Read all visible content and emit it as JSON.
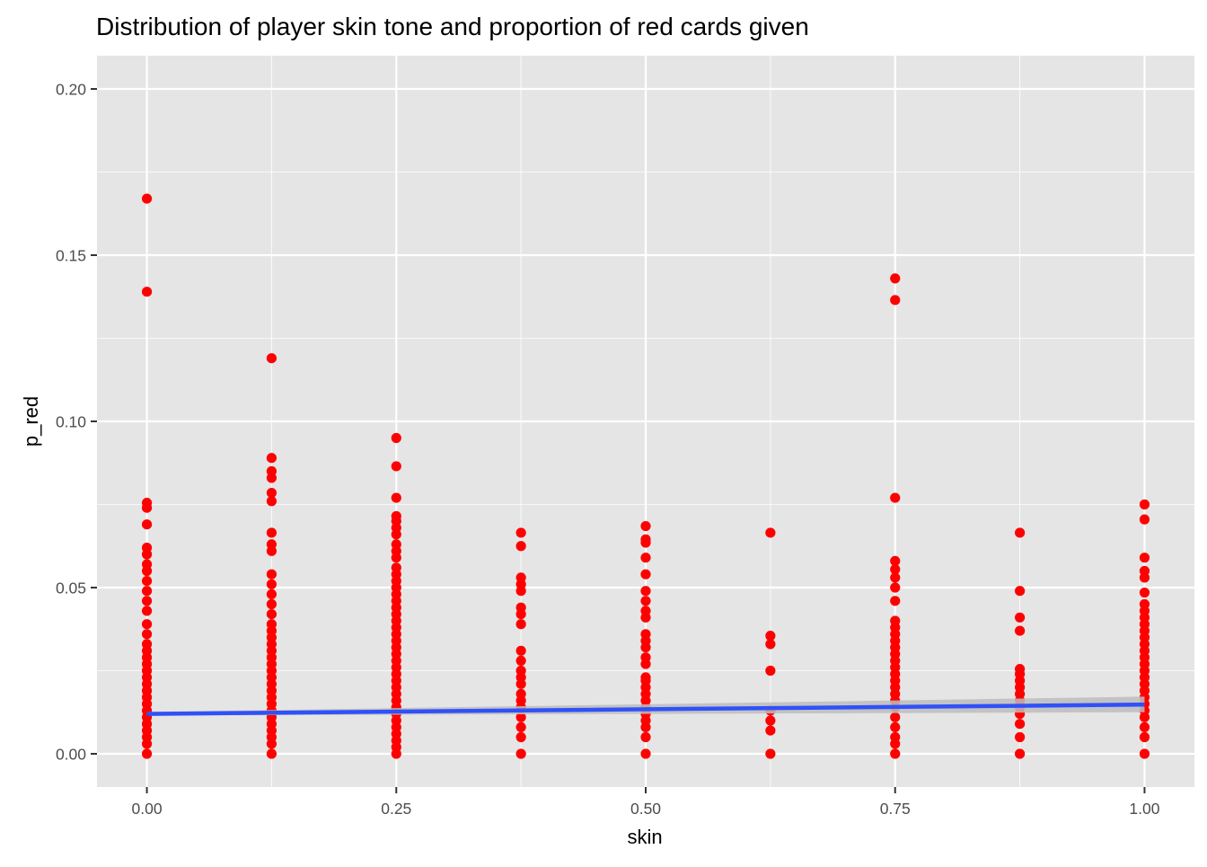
{
  "chart_data": {
    "type": "scatter",
    "title": "Distribution of player skin tone and proportion of red cards given",
    "xlabel": "skin",
    "ylabel": "p_red",
    "xlim": [
      -0.05,
      1.05
    ],
    "ylim": [
      -0.01,
      0.21
    ],
    "x_ticks": [
      0.0,
      0.25,
      0.5,
      0.75,
      1.0
    ],
    "x_tick_labels": [
      "0.00",
      "0.25",
      "0.50",
      "0.75",
      "1.00"
    ],
    "y_ticks": [
      0.0,
      0.05,
      0.1,
      0.15,
      0.2
    ],
    "y_tick_labels": [
      "0.00",
      "0.05",
      "0.10",
      "0.15",
      "0.20"
    ],
    "grid": true,
    "legend": "none",
    "colors": {
      "panel_background": "#e5e5e5",
      "gridline": "#ffffff",
      "points": "#ff0000",
      "trend_line": "#3050f8",
      "confidence_band": "#bdbdbd"
    },
    "series": [
      {
        "type": "points",
        "x_groups": [
          {
            "x": 0.0,
            "y": [
              0.0,
              0.003,
              0.005,
              0.007,
              0.009,
              0.011,
              0.013,
              0.015,
              0.017,
              0.019,
              0.021,
              0.023,
              0.025,
              0.027,
              0.029,
              0.031,
              0.033,
              0.036,
              0.039,
              0.043,
              0.046,
              0.049,
              0.052,
              0.055,
              0.057,
              0.06,
              0.062,
              0.069,
              0.074,
              0.0755,
              0.139,
              0.167
            ]
          },
          {
            "x": 0.125,
            "y": [
              0.0,
              0.003,
              0.005,
              0.007,
              0.009,
              0.011,
              0.013,
              0.015,
              0.017,
              0.019,
              0.021,
              0.023,
              0.025,
              0.027,
              0.029,
              0.031,
              0.033,
              0.035,
              0.037,
              0.039,
              0.042,
              0.045,
              0.048,
              0.051,
              0.054,
              0.061,
              0.063,
              0.0665,
              0.076,
              0.0785,
              0.083,
              0.085,
              0.089,
              0.119
            ]
          },
          {
            "x": 0.25,
            "y": [
              0.0,
              0.002,
              0.004,
              0.006,
              0.008,
              0.01,
              0.012,
              0.014,
              0.016,
              0.018,
              0.02,
              0.022,
              0.024,
              0.026,
              0.028,
              0.03,
              0.032,
              0.034,
              0.036,
              0.038,
              0.04,
              0.042,
              0.044,
              0.046,
              0.048,
              0.05,
              0.052,
              0.054,
              0.056,
              0.059,
              0.061,
              0.063,
              0.066,
              0.068,
              0.07,
              0.0715,
              0.077,
              0.0865,
              0.095
            ]
          },
          {
            "x": 0.375,
            "y": [
              0.0,
              0.005,
              0.008,
              0.011,
              0.014,
              0.016,
              0.018,
              0.021,
              0.023,
              0.025,
              0.028,
              0.031,
              0.039,
              0.042,
              0.044,
              0.049,
              0.051,
              0.053,
              0.0625,
              0.0665
            ]
          },
          {
            "x": 0.5,
            "y": [
              0.0,
              0.005,
              0.008,
              0.01,
              0.012,
              0.014,
              0.016,
              0.018,
              0.02,
              0.022,
              0.023,
              0.027,
              0.029,
              0.032,
              0.034,
              0.036,
              0.041,
              0.043,
              0.046,
              0.049,
              0.054,
              0.059,
              0.0635,
              0.0645,
              0.0685
            ]
          },
          {
            "x": 0.625,
            "y": [
              0.0,
              0.007,
              0.01,
              0.013,
              0.025,
              0.033,
              0.0355,
              0.0665
            ]
          },
          {
            "x": 0.75,
            "y": [
              0.0,
              0.003,
              0.005,
              0.008,
              0.011,
              0.014,
              0.016,
              0.018,
              0.02,
              0.022,
              0.024,
              0.026,
              0.028,
              0.03,
              0.032,
              0.034,
              0.036,
              0.038,
              0.04,
              0.046,
              0.05,
              0.053,
              0.0555,
              0.058,
              0.077,
              0.1365,
              0.143
            ]
          },
          {
            "x": 0.875,
            "y": [
              0.0,
              0.005,
              0.009,
              0.012,
              0.014,
              0.016,
              0.018,
              0.02,
              0.022,
              0.024,
              0.0255,
              0.037,
              0.041,
              0.049,
              0.0665
            ]
          },
          {
            "x": 1.0,
            "y": [
              0.0,
              0.005,
              0.008,
              0.011,
              0.013,
              0.015,
              0.017,
              0.019,
              0.021,
              0.023,
              0.025,
              0.027,
              0.029,
              0.031,
              0.033,
              0.035,
              0.037,
              0.039,
              0.041,
              0.043,
              0.045,
              0.0485,
              0.053,
              0.055,
              0.059,
              0.0705,
              0.075
            ]
          }
        ]
      },
      {
        "type": "linear-fit",
        "x": [
          0.0,
          1.0
        ],
        "y": [
          0.012,
          0.0148
        ],
        "ci_lower": [
          0.0115,
          0.0125
        ],
        "ci_upper": [
          0.0126,
          0.0172
        ]
      }
    ]
  }
}
